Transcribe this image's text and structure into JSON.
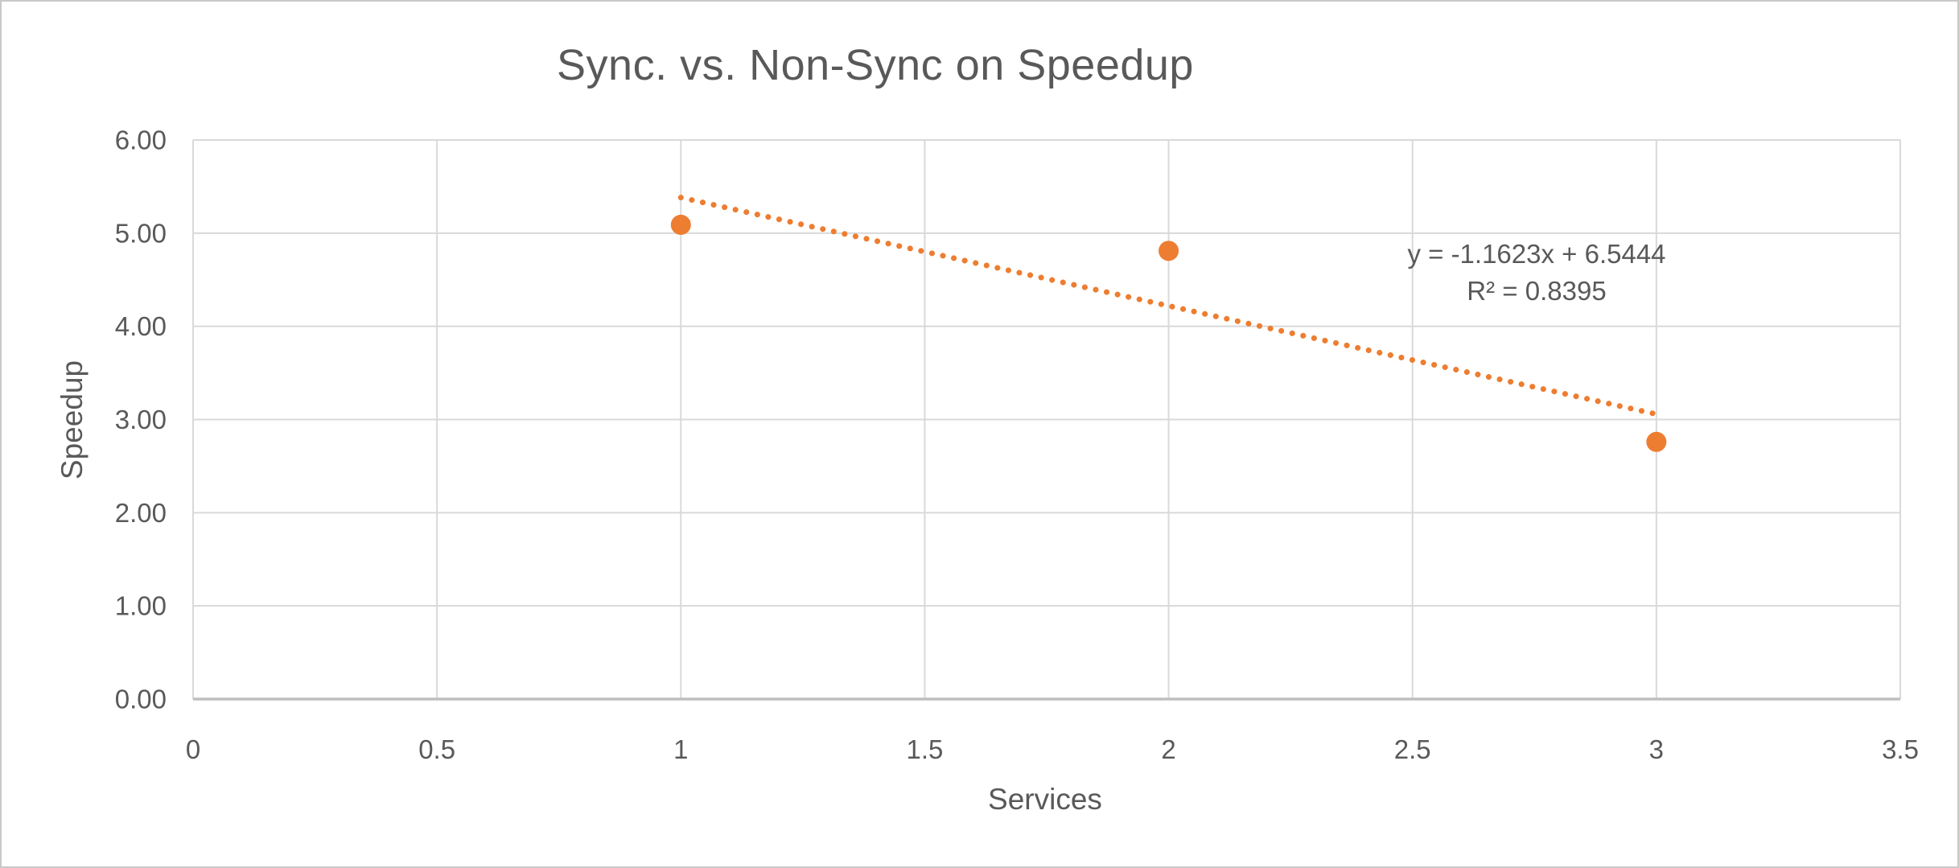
{
  "window": {
    "background_color": "#ffffff",
    "border_color": "#c9c9c9"
  },
  "chart_data": {
    "type": "scatter",
    "title": "Sync. vs. Non-Sync on Speedup",
    "xlabel": "Services",
    "ylabel": "Speedup",
    "x": [
      1,
      2,
      3
    ],
    "y": [
      5.09,
      4.81,
      2.76
    ],
    "xlim": [
      0,
      3.5
    ],
    "ylim": [
      0,
      6
    ],
    "xticks": [
      "0",
      "0.5",
      "1",
      "1.5",
      "2",
      "2.5",
      "3",
      "3.5"
    ],
    "xtick_values": [
      0,
      0.5,
      1,
      1.5,
      2,
      2.5,
      3,
      3.5
    ],
    "yticks": [
      "0.00",
      "1.00",
      "2.00",
      "3.00",
      "4.00",
      "5.00",
      "6.00"
    ],
    "ytick_values": [
      0,
      1,
      2,
      3,
      4,
      5,
      6
    ],
    "grid": true,
    "legend": false,
    "trendline": {
      "type": "linear",
      "slope": -1.1623,
      "intercept": 6.5444,
      "r_squared": 0.8395,
      "x_start": 1,
      "x_end": 3,
      "style": "dotted",
      "equation_label": "y = -1.1623x + 6.5444",
      "r2_label": "R² = 0.8395"
    },
    "colors": {
      "marker": "#ED7D31",
      "trendline": "#ED7D31",
      "gridline": "#D9D9D9",
      "axis_line": "#BFBFBF",
      "text": "#595959"
    }
  }
}
